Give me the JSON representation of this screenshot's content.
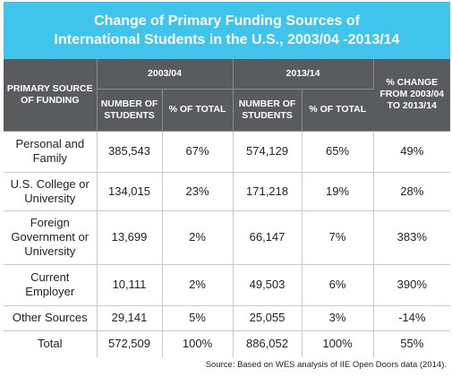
{
  "chart_data": {
    "type": "table",
    "title_line1": "Change of Primary Funding Sources of",
    "title_line2": "International Students in the U.S., 2003/04 -2013/14",
    "header": {
      "source_col": "PRIMARY SOURCE OF FUNDING",
      "period1": "2003/04",
      "period2": "2013/14",
      "change": "% CHANGE FROM 2003/04 TO 2013/14",
      "num_students": "NUMBER OF STUDENTS",
      "pct_total": "% OF TOTAL"
    },
    "rows": [
      {
        "source": "Personal and Family",
        "n2003": "385,543",
        "p2003": "67%",
        "n2013": "574,129",
        "p2013": "65%",
        "change": "49%"
      },
      {
        "source": "U.S. College or University",
        "n2003": "134,015",
        "p2003": "23%",
        "n2013": "171,218",
        "p2013": "19%",
        "change": "28%"
      },
      {
        "source": "Foreign Government or University",
        "n2003": "13,699",
        "p2003": "2%",
        "n2013": "66,147",
        "p2013": "7%",
        "change": "383%"
      },
      {
        "source": "Current Employer",
        "n2003": "10,111",
        "p2003": "2%",
        "n2013": "49,503",
        "p2013": "6%",
        "change": "390%"
      },
      {
        "source": "Other Sources",
        "n2003": "29,141",
        "p2003": "5%",
        "n2013": "25,055",
        "p2013": "3%",
        "change": "-14%"
      }
    ],
    "total": {
      "source": "Total",
      "n2003": "572,509",
      "p2003": "100%",
      "n2013": "886,052",
      "p2013": "100%",
      "change": "55%"
    },
    "note": "Source: Based on WES analysis of IIE Open Doors data (2014).",
    "colors": {
      "banner": "#3fc4ec",
      "header": "#595b5e"
    }
  }
}
